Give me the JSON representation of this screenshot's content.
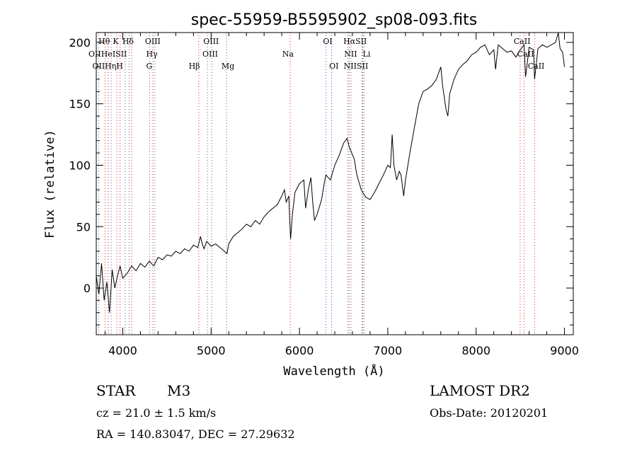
{
  "chart_data": {
    "type": "line",
    "title": "spec-55959-B5595902_sp08-093.fits",
    "xlabel": "Wavelength (Å)",
    "ylabel": "Flux (relative)",
    "xlim": [
      3700,
      9100
    ],
    "ylim": [
      -38,
      208
    ],
    "xticks": [
      4000,
      5000,
      6000,
      7000,
      8000,
      9000
    ],
    "yticks": [
      0,
      50,
      100,
      150,
      200
    ],
    "series": [
      {
        "name": "flux",
        "x": [
          3700,
          3730,
          3760,
          3790,
          3820,
          3850,
          3880,
          3910,
          3940,
          3970,
          4000,
          4050,
          4100,
          4150,
          4200,
          4250,
          4300,
          4350,
          4400,
          4450,
          4500,
          4550,
          4600,
          4650,
          4700,
          4750,
          4800,
          4850,
          4880,
          4900,
          4920,
          4950,
          5000,
          5050,
          5100,
          5150,
          5180,
          5200,
          5250,
          5300,
          5350,
          5400,
          5450,
          5500,
          5550,
          5600,
          5650,
          5700,
          5750,
          5800,
          5830,
          5850,
          5880,
          5890,
          5900,
          5920,
          5950,
          6000,
          6050,
          6070,
          6100,
          6130,
          6150,
          6170,
          6200,
          6250,
          6280,
          6300,
          6350,
          6400,
          6450,
          6500,
          6540,
          6563,
          6580,
          6620,
          6650,
          6700,
          6750,
          6800,
          6850,
          6900,
          6950,
          7000,
          7030,
          7050,
          7070,
          7100,
          7130,
          7150,
          7180,
          7200,
          7250,
          7300,
          7350,
          7400,
          7450,
          7500,
          7550,
          7600,
          7620,
          7650,
          7660,
          7680,
          7700,
          7750,
          7800,
          7850,
          7900,
          7950,
          8000,
          8050,
          8100,
          8150,
          8200,
          8220,
          8250,
          8300,
          8350,
          8400,
          8450,
          8500,
          8542,
          8560,
          8600,
          8650,
          8662,
          8700,
          8750,
          8800,
          8850,
          8900,
          8930,
          8950,
          8980,
          9000
        ],
        "y": [
          10,
          -5,
          20,
          -10,
          5,
          -20,
          15,
          0,
          10,
          18,
          8,
          12,
          18,
          14,
          20,
          17,
          22,
          18,
          25,
          23,
          27,
          26,
          30,
          28,
          32,
          30,
          35,
          33,
          42,
          36,
          32,
          38,
          34,
          36,
          33,
          30,
          28,
          36,
          42,
          45,
          48,
          52,
          50,
          55,
          52,
          58,
          62,
          65,
          68,
          75,
          80,
          70,
          75,
          55,
          40,
          60,
          78,
          85,
          88,
          65,
          80,
          90,
          70,
          55,
          60,
          72,
          85,
          92,
          88,
          100,
          108,
          118,
          122,
          115,
          112,
          105,
          92,
          80,
          74,
          72,
          78,
          85,
          92,
          100,
          98,
          125,
          100,
          88,
          95,
          92,
          75,
          88,
          110,
          130,
          150,
          160,
          162,
          165,
          170,
          180,
          165,
          150,
          145,
          140,
          158,
          170,
          178,
          182,
          185,
          190,
          192,
          196,
          198,
          190,
          194,
          178,
          198,
          195,
          192,
          193,
          188,
          194,
          198,
          172,
          196,
          194,
          170,
          195,
          198,
          196,
          198,
          200,
          208,
          195,
          192,
          180
        ]
      }
    ],
    "lines_red": [
      {
        "x": 3799,
        "label": "Hθ"
      },
      {
        "x": 3835,
        "label": "Hη"
      },
      {
        "x": 3934,
        "label": "K"
      },
      {
        "x": 3970,
        "label": "H"
      },
      {
        "x": 4102,
        "label": "Hδ"
      },
      {
        "x": 4341,
        "label": "Hγ"
      },
      {
        "x": 4861,
        "label": "Hβ"
      },
      {
        "x": 5896,
        "label": "Na"
      },
      {
        "x": 6563,
        "label": "Hα"
      },
      {
        "x": 6708,
        "label": "Li"
      },
      {
        "x": 8498,
        "label": "CaII"
      },
      {
        "x": 8542,
        "label": "CaII"
      },
      {
        "x": 8662,
        "label": "CaII"
      }
    ],
    "lines_blue": [
      {
        "x": 3727,
        "label": "OII"
      },
      {
        "x": 3869,
        "label": "NeIII"
      },
      {
        "x": 4026,
        "label": "HeI"
      },
      {
        "x": 4072,
        "label": "SII"
      },
      {
        "x": 4304,
        "label": "G"
      },
      {
        "x": 4363,
        "label": "OIII"
      },
      {
        "x": 4959,
        "label": "OIII"
      },
      {
        "x": 5007,
        "label": "OIII"
      },
      {
        "x": 5175,
        "label": "Mg"
      },
      {
        "x": 6300,
        "label": "OI"
      },
      {
        "x": 6364,
        "label": "OI"
      },
      {
        "x": 6548,
        "label": "NII"
      },
      {
        "x": 6583,
        "label": "NII"
      },
      {
        "x": 6717,
        "label": "SII"
      },
      {
        "x": 6731,
        "label": "SII"
      }
    ],
    "line_label_rows": [
      [
        {
          "text": "Hθ",
          "x": 3790
        },
        {
          "text": "K",
          "x": 3920
        },
        {
          "text": "Hδ",
          "x": 4060
        },
        {
          "text": "OIII",
          "x": 4340
        },
        {
          "text": "OIII",
          "x": 5000
        },
        {
          "text": "OI",
          "x": 6320
        },
        {
          "text": "HαSII",
          "x": 6630
        },
        {
          "text": "CaII",
          "x": 8520
        }
      ],
      [
        {
          "text": "OIIHeISII",
          "x": 3830
        },
        {
          "text": "Hγ",
          "x": 4330
        },
        {
          "text": "OIII",
          "x": 4990
        },
        {
          "text": "Na",
          "x": 5870
        },
        {
          "text": "NII",
          "x": 6580
        },
        {
          "text": "Li",
          "x": 6760
        },
        {
          "text": "CaII",
          "x": 8560
        }
      ],
      [
        {
          "text": "OIIHηH",
          "x": 3830
        },
        {
          "text": "G",
          "x": 4300
        },
        {
          "text": "Hβ",
          "x": 4810
        },
        {
          "text": "Mg",
          "x": 5190
        },
        {
          "text": "OI",
          "x": 6390
        },
        {
          "text": "NIISII",
          "x": 6640
        },
        {
          "text": "CaII",
          "x": 8680
        }
      ]
    ]
  },
  "info": {
    "object_class": "STAR",
    "subclass": "M3",
    "survey": "LAMOST DR2",
    "cz": "cz = 21.0 ± 1.5 km/s",
    "obs_date": "Obs-Date: 20120201",
    "coords": "RA = 140.83047, DEC =  27.29632"
  }
}
